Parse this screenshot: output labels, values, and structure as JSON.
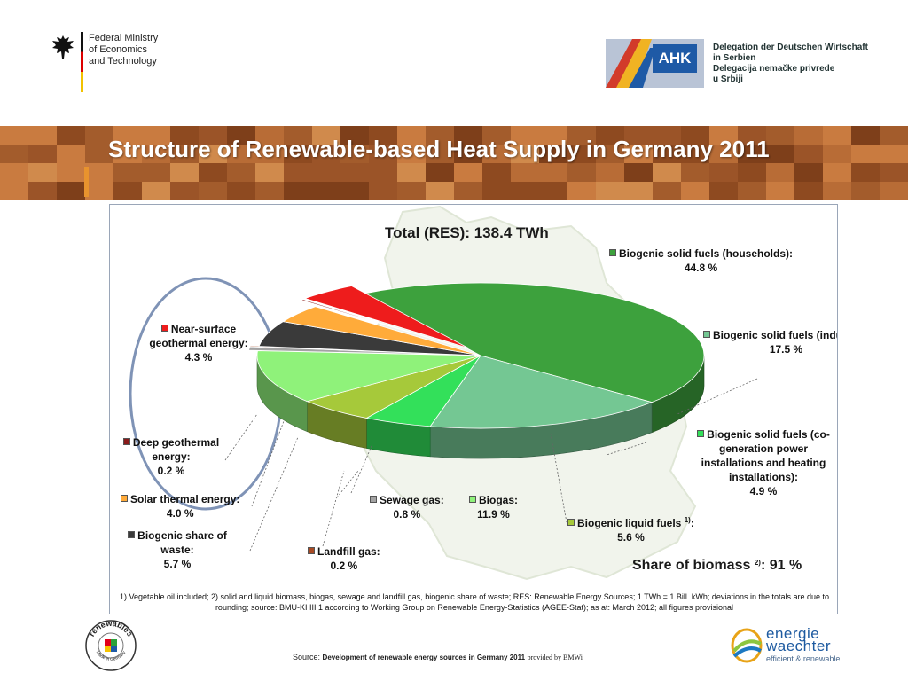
{
  "header": {
    "ministry_lines": [
      "Federal Ministry",
      "of Economics",
      "and Technology"
    ],
    "ahk_box": "AHK",
    "ahk_lines": [
      "Delegation der Deutschen Wirtschaft",
      "in Serbien",
      "Delegacija nemačke privrede",
      "u Srbiji"
    ]
  },
  "slide_title": "Structure of Renewable-based Heat Supply in Germany 2011",
  "chart_data": {
    "type": "pie",
    "title": "Total (RES): 138.4 TWh",
    "unit": "%",
    "slices": [
      {
        "label": "Biogenic solid fuels (households):",
        "value": 44.8,
        "value_label": "44.8 %",
        "color": "#3da13d"
      },
      {
        "label": "Biogenic solid fuels (industry):",
        "value": 17.5,
        "value_label": "17.5 %",
        "color": "#74c793"
      },
      {
        "label": "Biogenic solid fuels (co-generation power installations and heating installations):",
        "value": 4.9,
        "value_label": "4.9 %",
        "color": "#33e05a"
      },
      {
        "label": "Biogenic liquid fuels",
        "superscript": "1)",
        "label_suffix": ":",
        "value": 5.6,
        "value_label": "5.6 %",
        "color": "#a6c93a"
      },
      {
        "label": "Biogas:",
        "value": 11.9,
        "value_label": "11.9 %",
        "color": "#8ff27a"
      },
      {
        "label": "Sewage gas:",
        "value": 0.8,
        "value_label": "0.8 %",
        "color": "#a3a3a3"
      },
      {
        "label": "Landfill gas:",
        "value": 0.2,
        "value_label": "0.2 %",
        "color": "#a84a24"
      },
      {
        "label": "Biogenic share of waste:",
        "value": 5.7,
        "value_label": "5.7 %",
        "color": "#3a3a3a"
      },
      {
        "label": "Solar thermal energy:",
        "value": 4.0,
        "value_label": "4.0 %",
        "color": "#ffab3a"
      },
      {
        "label": "Deep geothermal energy:",
        "value": 0.2,
        "value_label": "0.2 %",
        "color": "#8a1a1a"
      },
      {
        "label": "Near-surface geothermal energy:",
        "value": 4.3,
        "value_label": "4.3 %",
        "color": "#ee1c1c"
      }
    ],
    "share_of_biomass": {
      "label": "Share of biomass",
      "superscript": "2)",
      "suffix": ":",
      "value": "91 %"
    },
    "footnote": [
      "1) Vegetable oil included; 2) solid and liquid biomass, biogas, sewage and landfill gas, biogenic share of waste; RES: Renewable Energy Sources; 1 TWh = 1 Bill. kWh; deviations in the totals are due to",
      "rounding; source: BMU-KI III 1 according to Working Group on Renewable Energy-Statistics (AGEE-Stat); as at: March 2012; all figures provisional"
    ]
  },
  "footer": {
    "source_prefix": "Source:",
    "source_title": "Development of renewable energy sources in Germany 2011",
    "source_suffix": "provided by BMWi",
    "renewables_logo_text": "renewables",
    "renewables_logo_sub": "Made in Germany",
    "ew_line1": "energie",
    "ew_line2": "waechter",
    "ew_line3": "efficient & renewable"
  }
}
